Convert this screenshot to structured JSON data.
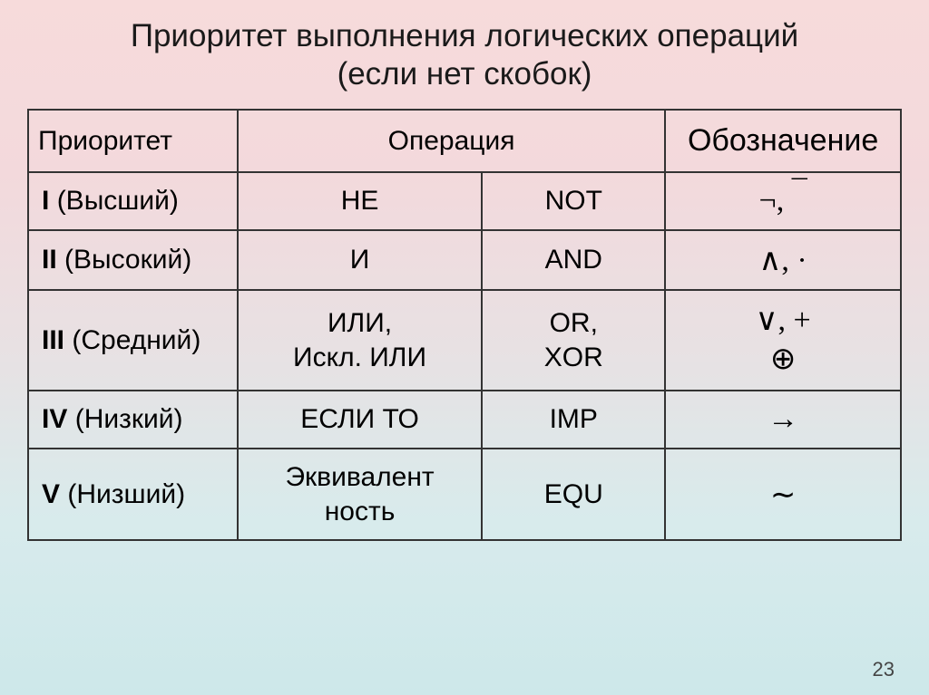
{
  "title": {
    "line1": "Приоритет выполнения логических операций",
    "line2": "(если нет скобок)"
  },
  "headers": {
    "c1": "Приоритет",
    "c2": "Операция",
    "c3": "Обозначение"
  },
  "rows": [
    {
      "level": "I",
      "level_desc": "(Высший)",
      "op_ru": "НЕ",
      "op_en": "NOT",
      "sym": "¬, ¯"
    },
    {
      "level": "II",
      "level_desc": "(Высокий)",
      "op_ru": "И",
      "op_en": "AND",
      "sym": "∧, ·"
    },
    {
      "level": "III",
      "level_desc": "(Средний)",
      "op_ru_l1": "ИЛИ,",
      "op_ru_l2": "Искл. ИЛИ",
      "op_en_l1": "OR,",
      "op_en_l2": "XOR",
      "sym_l1": "∨, +",
      "sym_l2": "⊕"
    },
    {
      "level": "IV",
      "level_desc": "(Низкий)",
      "op_ru": "ЕСЛИ ТО",
      "op_en": "IMP",
      "sym": "→"
    },
    {
      "level": "V",
      "level_desc": "(Низший)",
      "op_ru_l1": "Эквивалент",
      "op_ru_l2": "ность",
      "op_en": "EQU",
      "sym": "∼"
    }
  ],
  "page_number": "23",
  "style": {
    "gradient_top": "#f7dbdb",
    "gradient_bottom": "#cde8ea",
    "border_color": "#333333",
    "title_fontsize": 35,
    "cell_fontsize": 30,
    "symbol_fontsize": 34
  }
}
